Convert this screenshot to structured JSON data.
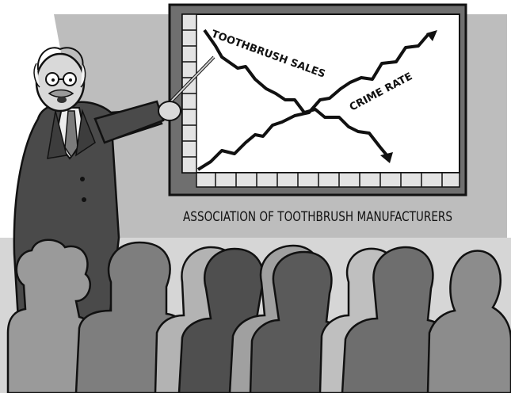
{
  "board": {
    "line_label_falling": "TOOTHBRUSH SALES",
    "line_label_rising": "CRIME RATE"
  },
  "caption": "ASSOCIATION OF TOOTHBRUSH MANUFACTURERS",
  "colors": {
    "backdrop": "#bdbdbd",
    "frame": "#6f6f6f",
    "board_face": "#ffffff",
    "suit": "#4a4a4a",
    "ink": "#111111"
  }
}
